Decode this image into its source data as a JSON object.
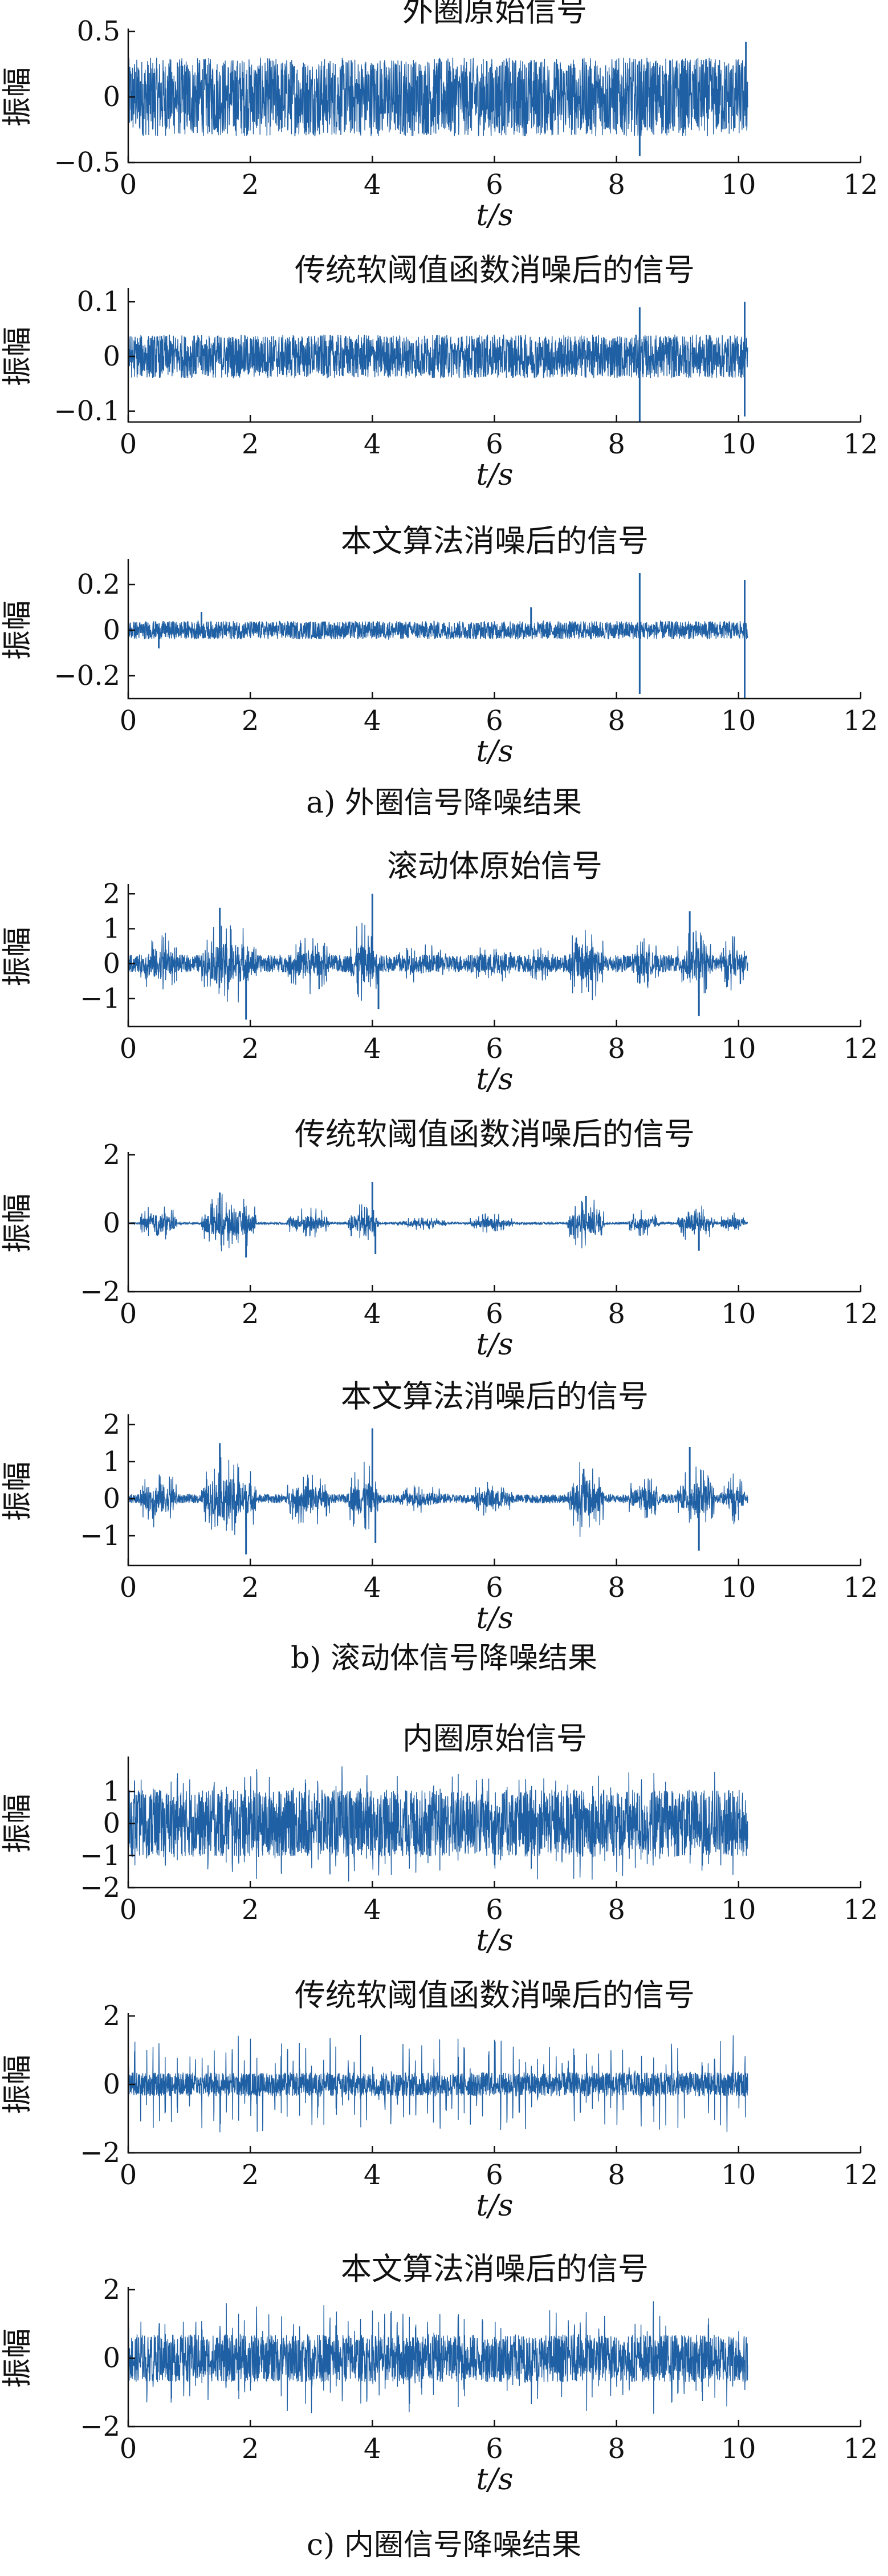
{
  "figure": {
    "captions": [
      "a) 外圈信号降噪结果",
      "b) 滚动体信号降噪结果",
      "c) 内圈信号降噪结果"
    ]
  },
  "chart_data": [
    {
      "type": "line",
      "group": 0,
      "title": "外圈原始信号",
      "xlabel": "t/s",
      "ylabel": "振幅",
      "xlim": [
        0,
        12
      ],
      "ylim": [
        -0.5,
        0.5
      ],
      "xticks": [
        0,
        2,
        4,
        6,
        8,
        10,
        12
      ],
      "yticks": [
        -0.5,
        0,
        0.5
      ],
      "ytick_labels": [
        "−0.5",
        "0",
        "0.5"
      ],
      "series": [
        {
          "color": "#1f5fa3",
          "x_end": 10.15,
          "envelope": 0.3,
          "spikes": [
            {
              "x": 8.38,
              "y": -0.45
            },
            {
              "x": 10.12,
              "y": 0.42
            },
            {
              "x": 7.3,
              "y": 0.25
            }
          ]
        }
      ]
    },
    {
      "type": "line",
      "group": 0,
      "title": "传统软阈值函数消噪后的信号",
      "xlabel": "t/s",
      "ylabel": "振幅",
      "xlim": [
        0,
        12
      ],
      "ylim": [
        -0.12,
        0.12
      ],
      "xticks": [
        0,
        2,
        4,
        6,
        8,
        10,
        12
      ],
      "yticks": [
        -0.1,
        0,
        0.1
      ],
      "ytick_labels": [
        "−0.1",
        "0",
        "0.1"
      ],
      "series": [
        {
          "color": "#1f5fa3",
          "x_end": 10.15,
          "envelope": 0.04,
          "spikes": [
            {
              "x": 8.38,
              "y": -0.12
            },
            {
              "x": 8.38,
              "y": 0.09
            },
            {
              "x": 10.1,
              "y": -0.11
            },
            {
              "x": 10.1,
              "y": 0.1
            }
          ]
        }
      ]
    },
    {
      "type": "line",
      "group": 0,
      "title": "本文算法消噪后的信号",
      "xlabel": "t/s",
      "ylabel": "振幅",
      "xlim": [
        0,
        12
      ],
      "ylim": [
        -0.3,
        0.3
      ],
      "xticks": [
        0,
        2,
        4,
        6,
        8,
        10,
        12
      ],
      "yticks": [
        -0.2,
        0,
        0.2
      ],
      "ytick_labels": [
        "−0.2",
        "0",
        "0.2"
      ],
      "series": [
        {
          "color": "#1f5fa3",
          "x_end": 10.15,
          "envelope": 0.04,
          "spikes": [
            {
              "x": 8.38,
              "y": 0.25
            },
            {
              "x": 8.38,
              "y": -0.28
            },
            {
              "x": 10.1,
              "y": 0.22
            },
            {
              "x": 10.1,
              "y": -0.3
            },
            {
              "x": 0.5,
              "y": -0.08
            },
            {
              "x": 1.2,
              "y": 0.08
            },
            {
              "x": 6.6,
              "y": 0.1
            }
          ]
        }
      ]
    },
    {
      "type": "line",
      "group": 1,
      "title": "滚动体原始信号",
      "xlabel": "t/s",
      "ylabel": "振幅",
      "xlim": [
        0,
        12
      ],
      "ylim": [
        -1.8,
        2.2
      ],
      "xticks": [
        0,
        2,
        4,
        6,
        8,
        10,
        12
      ],
      "yticks": [
        -1,
        0,
        1,
        2
      ],
      "ytick_labels": [
        "−1",
        "0",
        "1",
        "2"
      ],
      "series": [
        {
          "color": "#1f5fa3",
          "x_end": 10.15,
          "envelope": 0.25,
          "bursts": [
            [
              0.2,
              0.8,
              1.0
            ],
            [
              1.2,
              2.1,
              1.3
            ],
            [
              2.6,
              3.3,
              0.9
            ],
            [
              3.6,
              4.1,
              1.2
            ],
            [
              4.4,
              5.2,
              0.6
            ],
            [
              5.6,
              6.3,
              0.6
            ],
            [
              6.5,
              7.0,
              0.5
            ],
            [
              7.2,
              7.8,
              1.2
            ],
            [
              8.2,
              8.7,
              0.8
            ],
            [
              9.0,
              9.6,
              1.0
            ],
            [
              9.7,
              10.1,
              0.8
            ]
          ],
          "spikes": [
            {
              "x": 1.93,
              "y": -1.6
            },
            {
              "x": 4.0,
              "y": 2.0
            },
            {
              "x": 4.1,
              "y": -1.3
            },
            {
              "x": 9.35,
              "y": -1.5
            },
            {
              "x": 1.5,
              "y": 1.6
            },
            {
              "x": 9.2,
              "y": 1.5
            }
          ]
        }
      ]
    },
    {
      "type": "line",
      "group": 1,
      "title": "传统软阈值函数消噪后的信号",
      "xlabel": "t/s",
      "ylabel": "振幅",
      "xlim": [
        0,
        12
      ],
      "ylim": [
        -2,
        2
      ],
      "xticks": [
        0,
        2,
        4,
        6,
        8,
        10,
        12
      ],
      "yticks": [
        -2,
        0,
        2
      ],
      "ytick_labels": [
        "−2",
        "0",
        "2"
      ],
      "series": [
        {
          "color": "#1f5fa3",
          "x_end": 10.15,
          "envelope": 0.03,
          "bursts": [
            [
              0.2,
              0.8,
              0.6
            ],
            [
              1.2,
              2.1,
              0.9
            ],
            [
              2.6,
              3.3,
              0.5
            ],
            [
              3.6,
              4.1,
              0.6
            ],
            [
              4.4,
              5.2,
              0.2
            ],
            [
              5.6,
              6.3,
              0.3
            ],
            [
              7.2,
              7.8,
              0.8
            ],
            [
              8.2,
              8.7,
              0.4
            ],
            [
              9.0,
              9.6,
              0.6
            ],
            [
              9.7,
              10.1,
              0.4
            ]
          ],
          "spikes": [
            {
              "x": 1.93,
              "y": -1.0
            },
            {
              "x": 1.5,
              "y": 0.9
            },
            {
              "x": 4.0,
              "y": 1.2
            },
            {
              "x": 4.05,
              "y": -0.9
            },
            {
              "x": 9.35,
              "y": -0.8
            },
            {
              "x": 7.5,
              "y": 0.8
            }
          ]
        }
      ]
    },
    {
      "type": "line",
      "group": 1,
      "title": "本文算法消噪后的信号",
      "xlabel": "t/s",
      "ylabel": "振幅",
      "xlim": [
        0,
        12
      ],
      "ylim": [
        -1.8,
        2.2
      ],
      "xticks": [
        0,
        2,
        4,
        6,
        8,
        10,
        12
      ],
      "yticks": [
        -1,
        0,
        1,
        2
      ],
      "ytick_labels": [
        "−1",
        "0",
        "1",
        "2"
      ],
      "series": [
        {
          "color": "#1f5fa3",
          "x_end": 10.15,
          "envelope": 0.12,
          "bursts": [
            [
              0.2,
              0.8,
              0.9
            ],
            [
              1.2,
              2.1,
              1.2
            ],
            [
              2.6,
              3.3,
              0.8
            ],
            [
              3.6,
              4.1,
              1.0
            ],
            [
              4.4,
              5.2,
              0.4
            ],
            [
              5.6,
              6.3,
              0.5
            ],
            [
              7.2,
              7.8,
              1.1
            ],
            [
              8.2,
              8.7,
              0.7
            ],
            [
              9.0,
              9.6,
              0.9
            ],
            [
              9.7,
              10.1,
              0.7
            ]
          ],
          "spikes": [
            {
              "x": 1.93,
              "y": -1.5
            },
            {
              "x": 1.5,
              "y": 1.5
            },
            {
              "x": 4.0,
              "y": 1.9
            },
            {
              "x": 4.05,
              "y": -1.2
            },
            {
              "x": 9.35,
              "y": -1.4
            },
            {
              "x": 9.2,
              "y": 1.4
            }
          ]
        }
      ]
    },
    {
      "type": "line",
      "group": 2,
      "title": "内圈原始信号",
      "xlabel": "t/s",
      "ylabel": "振幅",
      "xlim": [
        0,
        12
      ],
      "ylim": [
        -2,
        2
      ],
      "xticks": [
        0,
        2,
        4,
        6,
        8,
        10,
        12
      ],
      "yticks": [
        -2,
        -1,
        0,
        1
      ],
      "ytick_labels": [
        "−2",
        "−1",
        "0",
        "1"
      ],
      "series": [
        {
          "color": "#1f5fa3",
          "x_end": 10.15,
          "envelope": 1.05,
          "impulse_period": 0.1,
          "impulse_amp": 1.9
        }
      ]
    },
    {
      "type": "line",
      "group": 2,
      "title": "传统软阈值函数消噪后的信号",
      "xlabel": "t/s",
      "ylabel": "振幅",
      "xlim": [
        0,
        12
      ],
      "ylim": [
        -2,
        2
      ],
      "xticks": [
        0,
        2,
        4,
        6,
        8,
        10,
        12
      ],
      "yticks": [
        -2,
        0,
        2
      ],
      "ytick_labels": [
        "−2",
        "0",
        "2"
      ],
      "series": [
        {
          "color": "#1f5fa3",
          "x_end": 10.15,
          "envelope": 0.35,
          "impulse_period": 0.1,
          "impulse_amp": 1.5
        }
      ]
    },
    {
      "type": "line",
      "group": 2,
      "title": "本文算法消噪后的信号",
      "xlabel": "t/s",
      "ylabel": "振幅",
      "xlim": [
        0,
        12
      ],
      "ylim": [
        -2,
        2
      ],
      "xticks": [
        0,
        2,
        4,
        6,
        8,
        10,
        12
      ],
      "yticks": [
        -2,
        0,
        2
      ],
      "ytick_labels": [
        "−2",
        "0",
        "2"
      ],
      "series": [
        {
          "color": "#1f5fa3",
          "x_end": 10.15,
          "envelope": 0.7,
          "impulse_period": 0.1,
          "impulse_amp": 1.7
        }
      ]
    }
  ]
}
